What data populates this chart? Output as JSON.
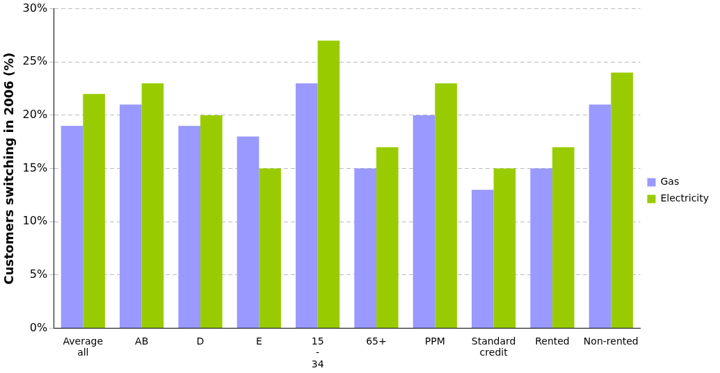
{
  "chart_data": {
    "type": "bar",
    "ylabel": "Customers switching in 2006 (%)",
    "categories": [
      "Average all",
      "AB",
      "D",
      "E",
      "15 - 34",
      "65+",
      "PPM",
      "Standard credit",
      "Rented",
      "Non-rented"
    ],
    "series": [
      {
        "name": "Gas",
        "color": "#9999ff",
        "values": [
          19,
          21,
          19,
          18,
          23,
          15,
          20,
          13,
          15,
          21
        ]
      },
      {
        "name": "Electricity",
        "color": "#99cc00",
        "values": [
          22,
          23,
          20,
          15,
          27,
          17,
          23,
          15,
          17,
          24
        ]
      }
    ],
    "ylim": [
      0,
      30
    ],
    "yticks": [
      {
        "value": 0,
        "label": "0%"
      },
      {
        "value": 5,
        "label": "5%"
      },
      {
        "value": 10,
        "label": "10%"
      },
      {
        "value": 15,
        "label": "15%"
      },
      {
        "value": 20,
        "label": "20%"
      },
      {
        "value": 25,
        "label": "25%"
      },
      {
        "value": 30,
        "label": "30%"
      }
    ],
    "grid": "y",
    "legend": "right"
  }
}
